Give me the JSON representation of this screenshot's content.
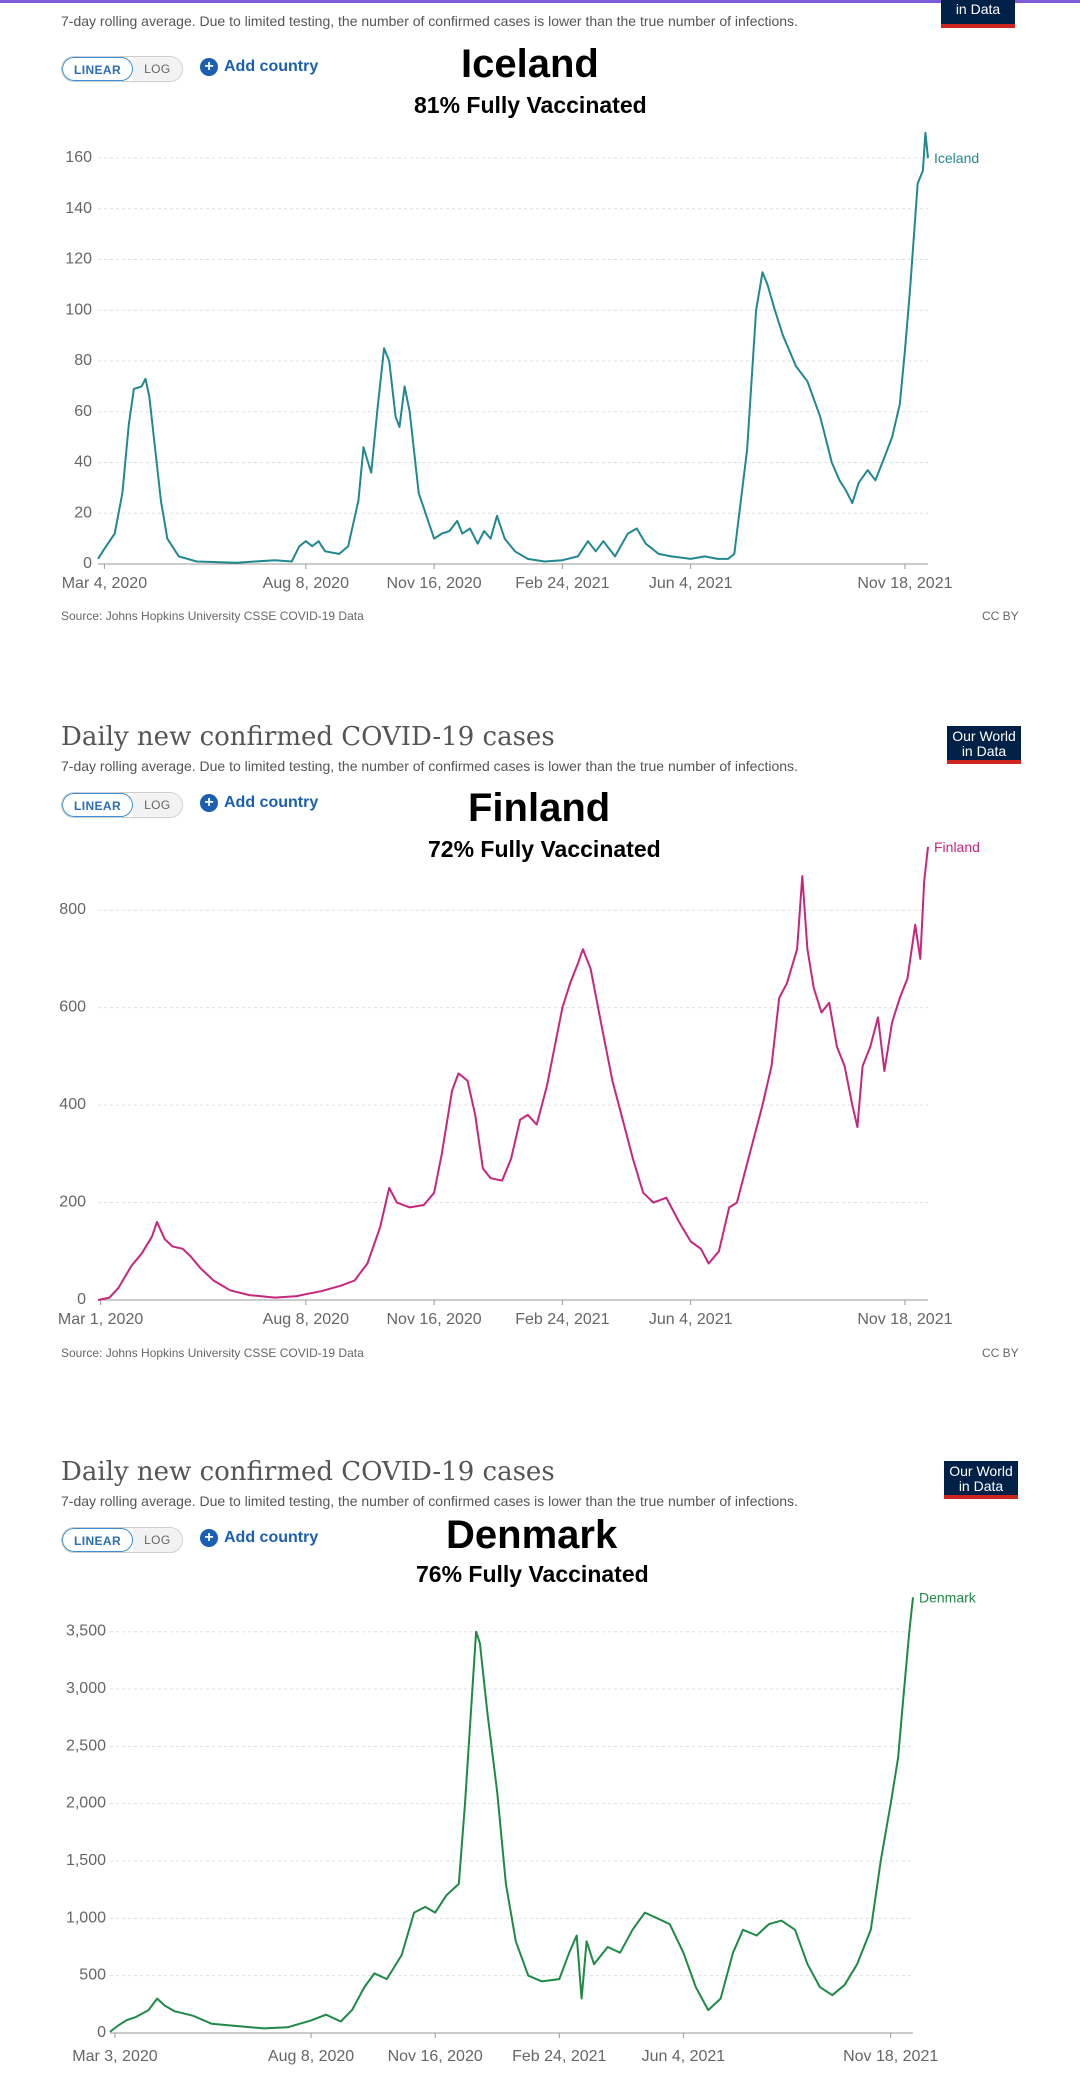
{
  "shared": {
    "heading": "Daily new confirmed COVID-19 cases",
    "subtitle": "7-day rolling average. Due to limited testing, the number of confirmed cases is lower than the true number of infections.",
    "logo_line1": "Our World",
    "logo_line2": "in Data",
    "linear_label": "LINEAR",
    "log_label": "LOG",
    "add_country_label": "Add country",
    "source": "Source: Johns Hopkins University CSSE COVID-19 Data",
    "license": "CC BY"
  },
  "panels": [
    {
      "country": "Iceland",
      "vaccinated": "81% Fully Vaccinated"
    },
    {
      "country": "Finland",
      "vaccinated": "72% Fully Vaccinated"
    },
    {
      "country": "Denmark",
      "vaccinated": "76% Fully Vaccinated"
    }
  ],
  "chart_data": [
    {
      "type": "line",
      "title": "Daily new confirmed COVID-19 cases",
      "series_name": "Iceland",
      "color": "#21888f",
      "y_ticks": [
        "0",
        "20",
        "40",
        "60",
        "80",
        "100",
        "120",
        "140",
        "160"
      ],
      "y_tick_values": [
        0,
        20,
        40,
        60,
        80,
        100,
        120,
        140,
        160
      ],
      "ylim": [
        0,
        175
      ],
      "x_tick_labels": [
        "Mar 4, 2020",
        "Aug 8, 2020",
        "Nov 16, 2020",
        "Feb 24, 2021",
        "Jun 4, 2021",
        "Nov 18, 2021"
      ],
      "x_tick_dates": [
        "2020-03-04",
        "2020-08-08",
        "2020-11-16",
        "2021-02-24",
        "2021-06-04",
        "2021-11-18"
      ],
      "grid": true,
      "points": [
        [
          "2020-02-28",
          2
        ],
        [
          "2020-03-04",
          6
        ],
        [
          "2020-03-12",
          12
        ],
        [
          "2020-03-18",
          28
        ],
        [
          "2020-03-23",
          55
        ],
        [
          "2020-03-27",
          69
        ],
        [
          "2020-04-02",
          70
        ],
        [
          "2020-04-05",
          73
        ],
        [
          "2020-04-08",
          66
        ],
        [
          "2020-04-12",
          48
        ],
        [
          "2020-04-17",
          25
        ],
        [
          "2020-04-22",
          10
        ],
        [
          "2020-05-01",
          3
        ],
        [
          "2020-05-15",
          1
        ],
        [
          "2020-06-15",
          0.5
        ],
        [
          "2020-07-15",
          1.5
        ],
        [
          "2020-07-28",
          1
        ],
        [
          "2020-08-03",
          7
        ],
        [
          "2020-08-08",
          9
        ],
        [
          "2020-08-13",
          7
        ],
        [
          "2020-08-18",
          9
        ],
        [
          "2020-08-23",
          5
        ],
        [
          "2020-09-03",
          4
        ],
        [
          "2020-09-10",
          7
        ],
        [
          "2020-09-18",
          25
        ],
        [
          "2020-09-22",
          46
        ],
        [
          "2020-09-28",
          36
        ],
        [
          "2020-10-03",
          62
        ],
        [
          "2020-10-08",
          85
        ],
        [
          "2020-10-12",
          80
        ],
        [
          "2020-10-17",
          58
        ],
        [
          "2020-10-20",
          54
        ],
        [
          "2020-10-24",
          70
        ],
        [
          "2020-10-28",
          60
        ],
        [
          "2020-11-04",
          28
        ],
        [
          "2020-11-12",
          16
        ],
        [
          "2020-11-16",
          10
        ],
        [
          "2020-11-22",
          12
        ],
        [
          "2020-11-28",
          13
        ],
        [
          "2020-12-04",
          17
        ],
        [
          "2020-12-08",
          12
        ],
        [
          "2020-12-14",
          14
        ],
        [
          "2020-12-20",
          8
        ],
        [
          "2020-12-25",
          13
        ],
        [
          "2020-12-30",
          10
        ],
        [
          "2021-01-04",
          19
        ],
        [
          "2021-01-10",
          10
        ],
        [
          "2021-01-18",
          5
        ],
        [
          "2021-01-28",
          2
        ],
        [
          "2021-02-10",
          1
        ],
        [
          "2021-02-24",
          1.5
        ],
        [
          "2021-03-08",
          3
        ],
        [
          "2021-03-16",
          9
        ],
        [
          "2021-03-22",
          5
        ],
        [
          "2021-03-28",
          9
        ],
        [
          "2021-04-06",
          3
        ],
        [
          "2021-04-16",
          12
        ],
        [
          "2021-04-23",
          14
        ],
        [
          "2021-04-30",
          8
        ],
        [
          "2021-05-10",
          4
        ],
        [
          "2021-05-20",
          3
        ],
        [
          "2021-06-04",
          2
        ],
        [
          "2021-06-15",
          3
        ],
        [
          "2021-06-25",
          2
        ],
        [
          "2021-07-03",
          2
        ],
        [
          "2021-07-08",
          4
        ],
        [
          "2021-07-18",
          45
        ],
        [
          "2021-07-25",
          100
        ],
        [
          "2021-07-30",
          115
        ],
        [
          "2021-08-03",
          110
        ],
        [
          "2021-08-08",
          101
        ],
        [
          "2021-08-15",
          90
        ],
        [
          "2021-08-20",
          84
        ],
        [
          "2021-08-25",
          78
        ],
        [
          "2021-09-03",
          72
        ],
        [
          "2021-09-13",
          58
        ],
        [
          "2021-09-22",
          40
        ],
        [
          "2021-09-28",
          33
        ],
        [
          "2021-10-03",
          29
        ],
        [
          "2021-10-08",
          24
        ],
        [
          "2021-10-13",
          32
        ],
        [
          "2021-10-20",
          37
        ],
        [
          "2021-10-26",
          33
        ],
        [
          "2021-11-02",
          42
        ],
        [
          "2021-11-08",
          50
        ],
        [
          "2021-11-14",
          63
        ],
        [
          "2021-11-18",
          84
        ],
        [
          "2021-11-22",
          108
        ],
        [
          "2021-11-28",
          150
        ],
        [
          "2021-12-02",
          155
        ],
        [
          "2021-12-04",
          170
        ],
        [
          "2021-12-06",
          160
        ]
      ]
    },
    {
      "type": "line",
      "title": "Daily new confirmed COVID-19 cases",
      "series_name": "Finland",
      "color": "#c7267d",
      "y_ticks": [
        "0",
        "200",
        "400",
        "600",
        "800"
      ],
      "y_tick_values": [
        0,
        200,
        400,
        600,
        800
      ],
      "ylim": [
        0,
        940
      ],
      "x_tick_labels": [
        "Mar 1, 2020",
        "Aug 8, 2020",
        "Nov 16, 2020",
        "Feb 24, 2021",
        "Jun 4, 2021",
        "Nov 18, 2021"
      ],
      "x_tick_dates": [
        "2020-03-01",
        "2020-08-08",
        "2020-11-16",
        "2021-02-24",
        "2021-06-04",
        "2021-11-18"
      ],
      "grid": true,
      "points": [
        [
          "2020-02-28",
          0
        ],
        [
          "2020-03-08",
          5
        ],
        [
          "2020-03-15",
          25
        ],
        [
          "2020-03-25",
          70
        ],
        [
          "2020-04-02",
          95
        ],
        [
          "2020-04-10",
          130
        ],
        [
          "2020-04-14",
          160
        ],
        [
          "2020-04-20",
          125
        ],
        [
          "2020-04-26",
          110
        ],
        [
          "2020-05-04",
          105
        ],
        [
          "2020-05-10",
          90
        ],
        [
          "2020-05-18",
          65
        ],
        [
          "2020-05-28",
          40
        ],
        [
          "2020-06-10",
          20
        ],
        [
          "2020-06-25",
          10
        ],
        [
          "2020-07-15",
          5
        ],
        [
          "2020-08-01",
          8
        ],
        [
          "2020-08-08",
          12
        ],
        [
          "2020-08-20",
          18
        ],
        [
          "2020-09-05",
          30
        ],
        [
          "2020-09-15",
          40
        ],
        [
          "2020-09-25",
          75
        ],
        [
          "2020-10-05",
          150
        ],
        [
          "2020-10-12",
          230
        ],
        [
          "2020-10-18",
          200
        ],
        [
          "2020-10-28",
          190
        ],
        [
          "2020-11-08",
          195
        ],
        [
          "2020-11-16",
          220
        ],
        [
          "2020-11-22",
          300
        ],
        [
          "2020-11-30",
          430
        ],
        [
          "2020-12-05",
          465
        ],
        [
          "2020-12-12",
          450
        ],
        [
          "2020-12-18",
          380
        ],
        [
          "2020-12-24",
          270
        ],
        [
          "2020-12-30",
          250
        ],
        [
          "2021-01-08",
          245
        ],
        [
          "2021-01-15",
          290
        ],
        [
          "2021-01-22",
          370
        ],
        [
          "2021-01-28",
          380
        ],
        [
          "2021-02-04",
          360
        ],
        [
          "2021-02-12",
          440
        ],
        [
          "2021-02-18",
          520
        ],
        [
          "2021-02-24",
          600
        ],
        [
          "2021-03-02",
          650
        ],
        [
          "2021-03-08",
          690
        ],
        [
          "2021-03-12",
          720
        ],
        [
          "2021-03-18",
          680
        ],
        [
          "2021-03-26",
          570
        ],
        [
          "2021-04-04",
          450
        ],
        [
          "2021-04-12",
          370
        ],
        [
          "2021-04-20",
          290
        ],
        [
          "2021-04-28",
          220
        ],
        [
          "2021-05-06",
          200
        ],
        [
          "2021-05-16",
          210
        ],
        [
          "2021-05-26",
          160
        ],
        [
          "2021-06-04",
          120
        ],
        [
          "2021-06-12",
          105
        ],
        [
          "2021-06-18",
          75
        ],
        [
          "2021-06-26",
          100
        ],
        [
          "2021-07-04",
          190
        ],
        [
          "2021-07-10",
          200
        ],
        [
          "2021-07-20",
          300
        ],
        [
          "2021-07-30",
          400
        ],
        [
          "2021-08-06",
          480
        ],
        [
          "2021-08-12",
          620
        ],
        [
          "2021-08-18",
          650
        ],
        [
          "2021-08-26",
          720
        ],
        [
          "2021-08-30",
          870
        ],
        [
          "2021-09-03",
          720
        ],
        [
          "2021-09-08",
          640
        ],
        [
          "2021-09-14",
          590
        ],
        [
          "2021-09-20",
          610
        ],
        [
          "2021-09-26",
          520
        ],
        [
          "2021-10-02",
          480
        ],
        [
          "2021-10-08",
          400
        ],
        [
          "2021-10-12",
          355
        ],
        [
          "2021-10-16",
          480
        ],
        [
          "2021-10-22",
          520
        ],
        [
          "2021-10-28",
          580
        ],
        [
          "2021-11-02",
          470
        ],
        [
          "2021-11-08",
          570
        ],
        [
          "2021-11-14",
          620
        ],
        [
          "2021-11-20",
          660
        ],
        [
          "2021-11-26",
          770
        ],
        [
          "2021-11-30",
          700
        ],
        [
          "2021-12-03",
          860
        ],
        [
          "2021-12-06",
          930
        ]
      ]
    },
    {
      "type": "line",
      "title": "Daily new confirmed COVID-19 cases",
      "series_name": "Denmark",
      "color": "#1e8a46",
      "y_ticks": [
        "0",
        "500",
        "1,000",
        "1,500",
        "2,000",
        "2,500",
        "3,000",
        "3,500"
      ],
      "y_tick_values": [
        0,
        500,
        1000,
        1500,
        2000,
        2500,
        3000,
        3500
      ],
      "ylim": [
        0,
        3820
      ],
      "x_tick_labels": [
        "Mar 3, 2020",
        "Aug 8, 2020",
        "Nov 16, 2020",
        "Feb 24, 2021",
        "Jun 4, 2021",
        "Nov 18, 2021"
      ],
      "x_tick_dates": [
        "2020-03-03",
        "2020-08-08",
        "2020-11-16",
        "2021-02-24",
        "2021-06-04",
        "2021-11-18"
      ],
      "grid": true,
      "points": [
        [
          "2020-02-28",
          10
        ],
        [
          "2020-03-05",
          60
        ],
        [
          "2020-03-12",
          110
        ],
        [
          "2020-03-20",
          140
        ],
        [
          "2020-03-30",
          200
        ],
        [
          "2020-04-06",
          300
        ],
        [
          "2020-04-12",
          240
        ],
        [
          "2020-04-20",
          190
        ],
        [
          "2020-05-05",
          150
        ],
        [
          "2020-05-20",
          80
        ],
        [
          "2020-06-10",
          60
        ],
        [
          "2020-07-01",
          40
        ],
        [
          "2020-07-20",
          50
        ],
        [
          "2020-08-08",
          110
        ],
        [
          "2020-08-20",
          160
        ],
        [
          "2020-09-01",
          100
        ],
        [
          "2020-09-10",
          200
        ],
        [
          "2020-09-20",
          400
        ],
        [
          "2020-09-28",
          520
        ],
        [
          "2020-10-08",
          470
        ],
        [
          "2020-10-20",
          680
        ],
        [
          "2020-10-30",
          1050
        ],
        [
          "2020-11-08",
          1100
        ],
        [
          "2020-11-16",
          1050
        ],
        [
          "2020-11-25",
          1200
        ],
        [
          "2020-12-05",
          1300
        ],
        [
          "2020-12-10",
          2000
        ],
        [
          "2020-12-16",
          3000
        ],
        [
          "2020-12-19",
          3500
        ],
        [
          "2020-12-22",
          3400
        ],
        [
          "2020-12-28",
          2800
        ],
        [
          "2021-01-05",
          2100
        ],
        [
          "2021-01-12",
          1300
        ],
        [
          "2021-01-20",
          800
        ],
        [
          "2021-01-30",
          500
        ],
        [
          "2021-02-10",
          450
        ],
        [
          "2021-02-24",
          470
        ],
        [
          "2021-03-04",
          700
        ],
        [
          "2021-03-10",
          850
        ],
        [
          "2021-03-14",
          300
        ],
        [
          "2021-03-18",
          800
        ],
        [
          "2021-03-24",
          600
        ],
        [
          "2021-04-04",
          750
        ],
        [
          "2021-04-14",
          700
        ],
        [
          "2021-04-24",
          900
        ],
        [
          "2021-05-04",
          1050
        ],
        [
          "2021-05-14",
          1000
        ],
        [
          "2021-05-24",
          950
        ],
        [
          "2021-06-04",
          700
        ],
        [
          "2021-06-14",
          400
        ],
        [
          "2021-06-24",
          200
        ],
        [
          "2021-07-04",
          300
        ],
        [
          "2021-07-14",
          700
        ],
        [
          "2021-07-22",
          900
        ],
        [
          "2021-08-02",
          850
        ],
        [
          "2021-08-12",
          950
        ],
        [
          "2021-08-22",
          980
        ],
        [
          "2021-09-02",
          900
        ],
        [
          "2021-09-12",
          600
        ],
        [
          "2021-09-22",
          400
        ],
        [
          "2021-10-02",
          330
        ],
        [
          "2021-10-12",
          420
        ],
        [
          "2021-10-22",
          600
        ],
        [
          "2021-11-02",
          900
        ],
        [
          "2021-11-10",
          1500
        ],
        [
          "2021-11-18",
          2000
        ],
        [
          "2021-11-24",
          2400
        ],
        [
          "2021-11-28",
          2900
        ],
        [
          "2021-12-03",
          3500
        ],
        [
          "2021-12-06",
          3800
        ]
      ]
    }
  ]
}
